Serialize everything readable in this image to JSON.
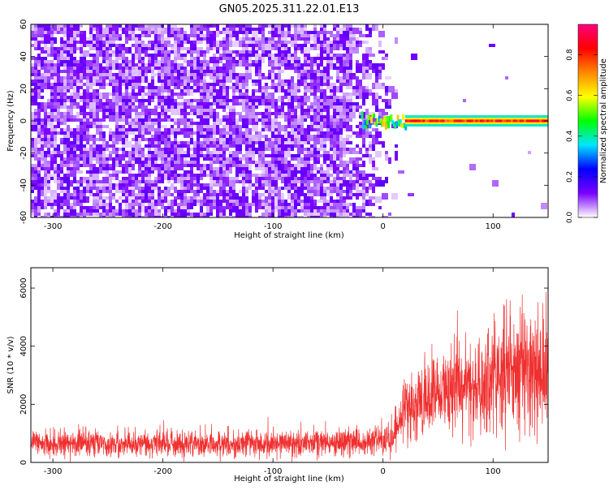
{
  "chart_data": [
    {
      "type": "heatmap",
      "title": "GN05.2025.311.22.01.E13",
      "xlabel": "Height of straight line (km)",
      "ylabel": "Frequency (Hz)",
      "xlim": [
        -320,
        150
      ],
      "ylim": [
        -60,
        60
      ],
      "xticks": [
        -300,
        -200,
        -100,
        0,
        100
      ],
      "yticks": [
        -60,
        -40,
        -20,
        0,
        20,
        40,
        60
      ],
      "colorbar": {
        "label": "Normalized spectral amplitude",
        "range": [
          0,
          0.95
        ],
        "ticks": [
          "0.0",
          "0.2",
          "0.4",
          "0.6",
          "0.8"
        ],
        "tick_values": [
          0,
          0.2,
          0.4,
          0.6,
          0.8
        ],
        "colormap": [
          "#ffffff",
          "#7a00ff",
          "#0000ff",
          "#00e5ff",
          "#00ff00",
          "#ffff00",
          "#ff8800",
          "#ff0000",
          "#ff0080"
        ]
      },
      "regions": [
        {
          "x": [
            -320,
            -20
          ],
          "y": [
            -60,
            60
          ],
          "amplitude": [
            0.02,
            0.15
          ],
          "description": "noise"
        },
        {
          "x": [
            -20,
            20
          ],
          "y": [
            -4,
            4
          ],
          "amplitude": [
            0.3,
            0.7
          ]
        },
        {
          "x": [
            20,
            150
          ],
          "y": [
            -2,
            2
          ],
          "amplitude": [
            0.7,
            0.95
          ]
        }
      ]
    },
    {
      "type": "line",
      "xlabel": "Height of straight line (km)",
      "ylabel": "SNR (10 * v/v)",
      "xlim": [
        -320,
        150
      ],
      "ylim": [
        0,
        6700
      ],
      "xticks": [
        -300,
        -200,
        -100,
        0,
        100
      ],
      "yticks": [
        0,
        2000,
        4000,
        6000
      ],
      "color": "#f03030",
      "series": [
        {
          "x": [
            -320,
            -250,
            -200,
            -150,
            -100,
            -50,
            -20,
            0,
            10,
            20,
            40,
            60,
            80,
            100,
            120,
            150
          ],
          "mean": [
            650,
            650,
            660,
            670,
            680,
            690,
            720,
            800,
            1000,
            1900,
            2300,
            2500,
            2700,
            2900,
            3100,
            3200
          ],
          "spread": [
            400,
            400,
            420,
            420,
            430,
            430,
            460,
            520,
            650,
            900,
            1100,
            1300,
            1500,
            1700,
            1900,
            2000
          ]
        }
      ]
    }
  ]
}
